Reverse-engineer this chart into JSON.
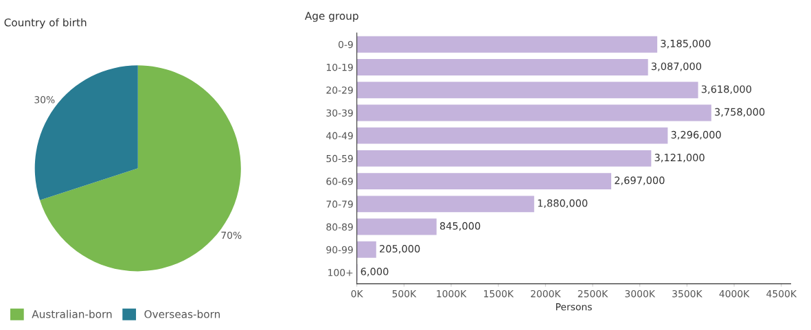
{
  "chart_data": [
    {
      "type": "pie",
      "title": "Country of birth",
      "categories": [
        "Australian-born",
        "Overseas-born"
      ],
      "values": [
        70,
        30
      ],
      "colors": [
        "#7ab94f",
        "#287c93"
      ],
      "value_labels": [
        "70%",
        "30%"
      ],
      "legend": "bottom"
    },
    {
      "type": "bar",
      "orientation": "horizontal",
      "title": "Age group",
      "xlabel": "Persons",
      "categories": [
        "0-9",
        "10-19",
        "20-29",
        "30-39",
        "40-49",
        "50-59",
        "60-69",
        "70-79",
        "80-89",
        "90-99",
        "100+"
      ],
      "values": [
        3185000,
        3087000,
        3618000,
        3758000,
        3296000,
        3121000,
        2697000,
        1880000,
        845000,
        205000,
        6000
      ],
      "value_labels": [
        "3,185,000",
        "3,087,000",
        "3,618,000",
        "3,758,000",
        "3,296,000",
        "3,121,000",
        "2,697,000",
        "1,880,000",
        "845,000",
        "205,000",
        "6,000"
      ],
      "color": "#c4b3dc",
      "xlim": [
        0,
        4600000
      ],
      "xticks": [
        {
          "value": 0,
          "label": "0K"
        },
        {
          "value": 500000,
          "label": "500K"
        },
        {
          "value": 1000000,
          "label": "1000K"
        },
        {
          "value": 1500000,
          "label": "1500K"
        },
        {
          "value": 2000000,
          "label": "2000K"
        },
        {
          "value": 2500000,
          "label": "2500K"
        },
        {
          "value": 3000000,
          "label": "3000K"
        },
        {
          "value": 3500000,
          "label": "3500K"
        },
        {
          "value": 4000000,
          "label": "4000K"
        },
        {
          "value": 4500000,
          "label": "4500K"
        }
      ],
      "grid": false,
      "legend": false
    }
  ]
}
